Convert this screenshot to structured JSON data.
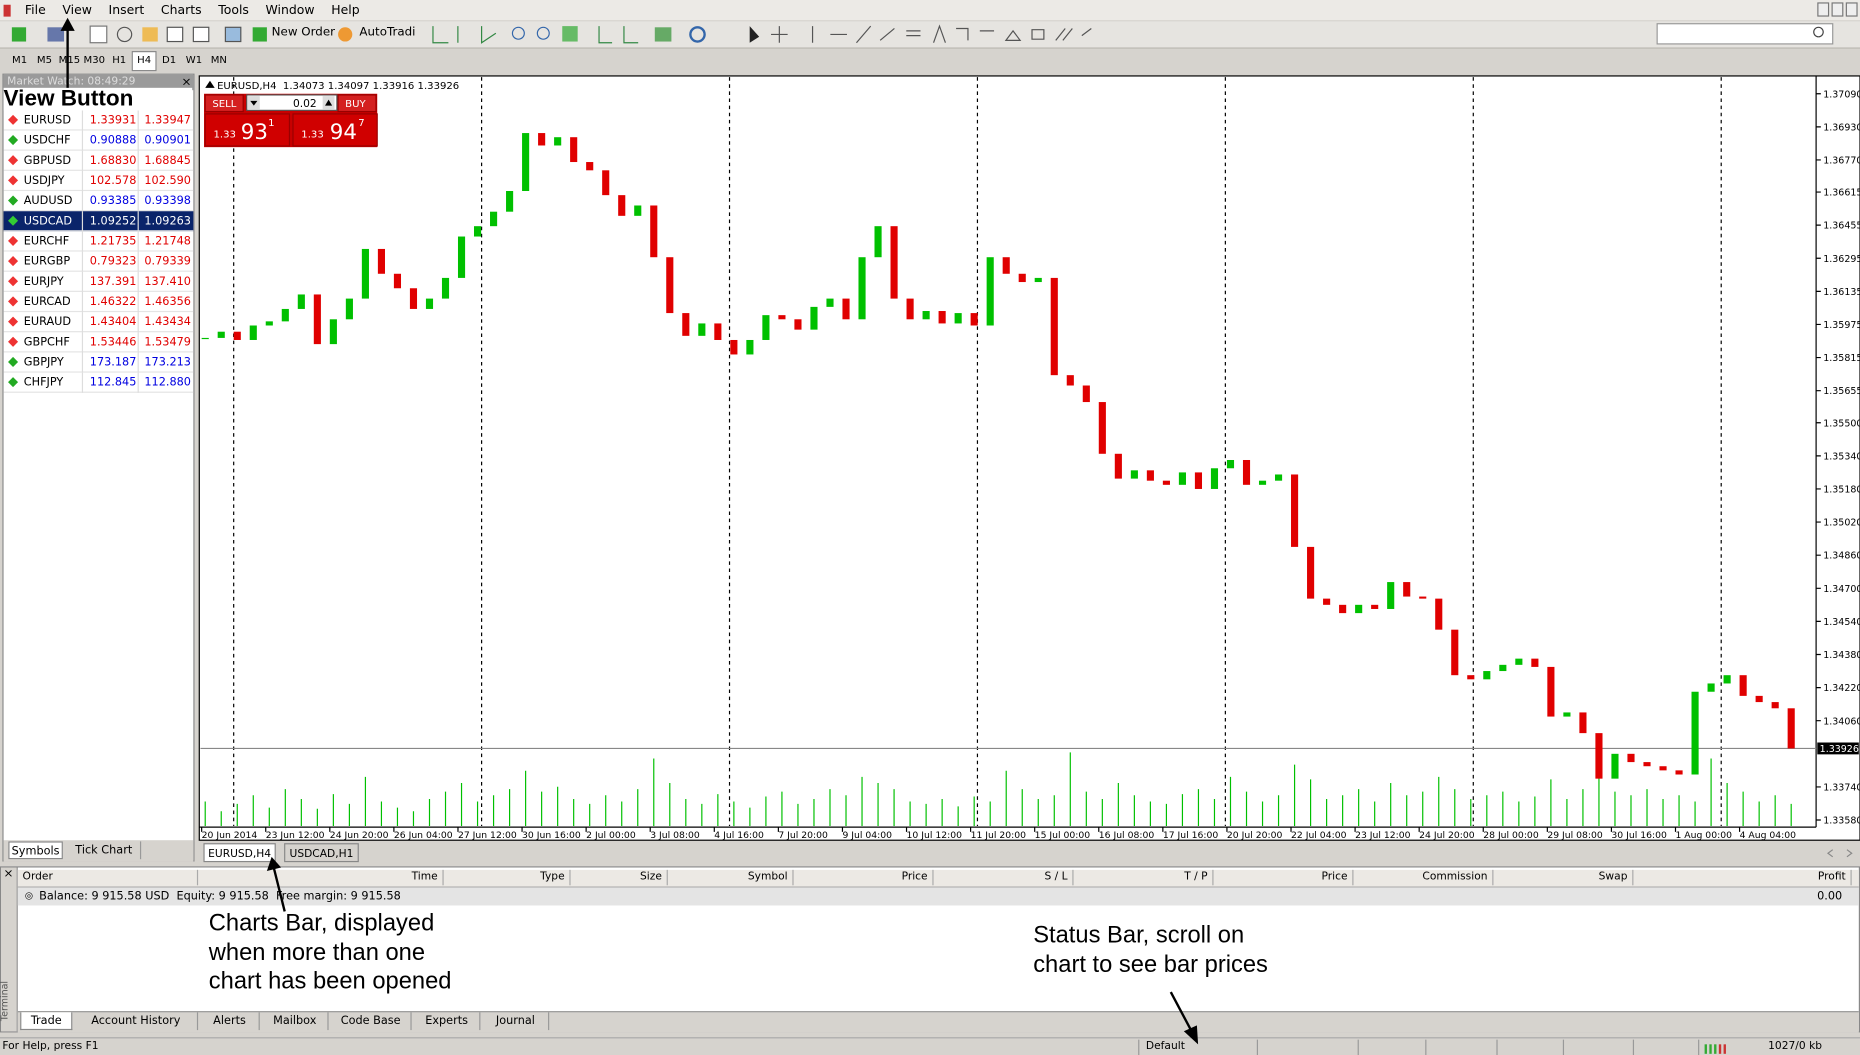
{
  "menu": [
    "File",
    "View",
    "Insert",
    "Charts",
    "Tools",
    "Window",
    "Help"
  ],
  "toolbar": {
    "new_order": "New Order",
    "autotrading": "AutoTradin"
  },
  "timeframes": [
    "M1",
    "M5",
    "M15",
    "M30",
    "H1",
    "H4",
    "D1",
    "W1",
    "MN"
  ],
  "market_watch": {
    "title": "Market Watch: 08:49:29",
    "rows": [
      {
        "symbol": "EURUSD",
        "bid": "1.33931",
        "ask": "1.33947",
        "color": "#e00000"
      },
      {
        "symbol": "USDCHF",
        "bid": "0.90888",
        "ask": "0.90901",
        "color": "#0000e0"
      },
      {
        "symbol": "GBPUSD",
        "bid": "1.68830",
        "ask": "1.68845",
        "color": "#e00000"
      },
      {
        "symbol": "USDJPY",
        "bid": "102.578",
        "ask": "102.590",
        "color": "#e00000"
      },
      {
        "symbol": "AUDUSD",
        "bid": "0.93385",
        "ask": "0.93398",
        "color": "#0000e0"
      },
      {
        "symbol": "USDCAD",
        "bid": "1.09252",
        "ask": "1.09263",
        "color": "#ffffff",
        "selected": true
      },
      {
        "symbol": "EURCHF",
        "bid": "1.21735",
        "ask": "1.21748",
        "color": "#e00000"
      },
      {
        "symbol": "EURGBP",
        "bid": "0.79323",
        "ask": "0.79339",
        "color": "#e00000"
      },
      {
        "symbol": "EURJPY",
        "bid": "137.391",
        "ask": "137.410",
        "color": "#e00000"
      },
      {
        "symbol": "EURCAD",
        "bid": "1.46322",
        "ask": "1.46356",
        "color": "#e00000"
      },
      {
        "symbol": "EURAUD",
        "bid": "1.43404",
        "ask": "1.43434",
        "color": "#e00000"
      },
      {
        "symbol": "GBPCHF",
        "bid": "1.53446",
        "ask": "1.53479",
        "color": "#e00000"
      },
      {
        "symbol": "GBPJPY",
        "bid": "173.187",
        "ask": "173.213",
        "color": "#0000e0"
      },
      {
        "symbol": "CHFJPY",
        "bid": "112.845",
        "ask": "112.880",
        "color": "#0000e0"
      }
    ],
    "tabs": [
      "Symbols",
      "Tick Chart"
    ]
  },
  "annotations": {
    "view_button": "View Button",
    "charts_bar": [
      "Charts Bar, displayed",
      "when more than one",
      "chart has been opened"
    ],
    "status_bar": [
      "Status Bar, scroll on",
      "chart to see bar prices"
    ]
  },
  "chart": {
    "type": "candlestick",
    "header": "EURUSD,H4  1.34073 1.34097 1.33916 1.33926",
    "trade_panel": {
      "sell": "SELL",
      "buy": "BUY",
      "lots": "0.02",
      "bid_prefix": "1.33",
      "bid_big": "93",
      "bid_small": "1",
      "ask_prefix": "1.33",
      "ask_big": "94",
      "ask_small": "7"
    },
    "ylim": [
      1.3358,
      1.3709
    ],
    "yticks": [
      {
        "value": 1.3709,
        "label": "1.37090"
      },
      {
        "value": 1.3693,
        "label": "1.36930"
      },
      {
        "value": 1.3677,
        "label": "1.36770"
      },
      {
        "value": 1.36615,
        "label": "1.36615"
      },
      {
        "value": 1.36455,
        "label": "1.36455"
      },
      {
        "value": 1.36295,
        "label": "1.36295"
      },
      {
        "value": 1.36135,
        "label": "1.36135"
      },
      {
        "value": 1.35975,
        "label": "1.35975"
      },
      {
        "value": 1.35815,
        "label": "1.35815"
      },
      {
        "value": 1.35655,
        "label": "1.35655"
      },
      {
        "value": 1.355,
        "label": "1.35500"
      },
      {
        "value": 1.3534,
        "label": "1.35340"
      },
      {
        "value": 1.3518,
        "label": "1.35180"
      },
      {
        "value": 1.3502,
        "label": "1.35020"
      },
      {
        "value": 1.3486,
        "label": "1.34860"
      },
      {
        "value": 1.347,
        "label": "1.34700"
      },
      {
        "value": 1.3454,
        "label": "1.34540"
      },
      {
        "value": 1.3438,
        "label": "1.34380"
      },
      {
        "value": 1.3422,
        "label": "1.34220"
      },
      {
        "value": 1.3406,
        "label": "1.34060"
      },
      {
        "value": 1.3374,
        "label": "1.33740"
      },
      {
        "value": 1.3358,
        "label": "1.33580"
      }
    ],
    "current_price": {
      "value": 1.33926,
      "label": "1.33926"
    },
    "time_labels": [
      "20 Jun 2014",
      "23 Jun 12:00",
      "24 Jun 20:00",
      "26 Jun 04:00",
      "27 Jun 12:00",
      "30 Jun 16:00",
      "2 Jul 00:00",
      "3 Jul 08:00",
      "4 Jul 16:00",
      "7 Jul 20:00",
      "9 Jul 04:00",
      "10 Jul 12:00",
      "11 Jul 20:00",
      "15 Jul 00:00",
      "16 Jul 08:00",
      "17 Jul 16:00",
      "20 Jul 20:00",
      "22 Jul 04:00",
      "23 Jul 12:00",
      "24 Jul 20:00",
      "28 Jul 00:00",
      "29 Jul 08:00",
      "30 Jul 16:00",
      "1 Aug 00:00",
      "4 Aug 04:00"
    ],
    "closes": [
      1.3591,
      1.3594,
      1.359,
      1.3597,
      1.3599,
      1.3605,
      1.3612,
      1.3588,
      1.36,
      1.361,
      1.3634,
      1.3622,
      1.3615,
      1.3605,
      1.361,
      1.362,
      1.364,
      1.3645,
      1.3652,
      1.3662,
      1.369,
      1.3684,
      1.3688,
      1.3676,
      1.3672,
      1.366,
      1.365,
      1.3655,
      1.363,
      1.3603,
      1.3592,
      1.3598,
      1.359,
      1.3583,
      1.359,
      1.3602,
      1.36,
      1.3595,
      1.3606,
      1.361,
      1.36,
      1.363,
      1.3645,
      1.361,
      1.36,
      1.3604,
      1.3598,
      1.3603,
      1.3597,
      1.363,
      1.3622,
      1.3618,
      1.362,
      1.3573,
      1.3568,
      1.356,
      1.3535,
      1.3523,
      1.3527,
      1.3522,
      1.352,
      1.3526,
      1.3518,
      1.3528,
      1.3532,
      1.352,
      1.3522,
      1.3525,
      1.349,
      1.3465,
      1.3462,
      1.3458,
      1.3462,
      1.346,
      1.3473,
      1.3466,
      1.3465,
      1.345,
      1.3428,
      1.3426,
      1.343,
      1.3433,
      1.3436,
      1.3432,
      1.3408,
      1.341,
      1.34,
      1.3378,
      1.339,
      1.3386,
      1.3384,
      1.3382,
      1.338,
      1.342,
      1.3424,
      1.3428,
      1.3418,
      1.3415,
      1.3412,
      1.33926
    ],
    "volumes": [
      20,
      12,
      18,
      25,
      15,
      30,
      22,
      14,
      26,
      18,
      40,
      20,
      15,
      12,
      22,
      28,
      35,
      20,
      25,
      30,
      45,
      28,
      32,
      22,
      18,
      25,
      20,
      30,
      55,
      35,
      22,
      18,
      26,
      20,
      15,
      24,
      28,
      18,
      22,
      30,
      25,
      40,
      35,
      30,
      20,
      18,
      22,
      16,
      24,
      20,
      45,
      30,
      22,
      25,
      60,
      28,
      22,
      35,
      25,
      20,
      18,
      26,
      30,
      22,
      40,
      28,
      20,
      25,
      50,
      38,
      22,
      25,
      30,
      20,
      35,
      25,
      28,
      40,
      30,
      22,
      25,
      28,
      20,
      24,
      38,
      22,
      30,
      45,
      28,
      25,
      30,
      22,
      25,
      20,
      55,
      35,
      28,
      20,
      25,
      18
    ],
    "up_color": "#00c000",
    "down_color": "#e00000"
  },
  "chart_tabs": [
    "EURUSD,H4",
    "USDCAD,H1"
  ],
  "terminal": {
    "side_label": "Terminal",
    "columns": [
      "Order",
      "Time",
      "Type",
      "Size",
      "Symbol",
      "Price",
      "S / L",
      "T / P",
      "Price",
      "Commission",
      "Swap",
      "Profit"
    ],
    "balance": "Balance: 9 915.58 USD  Equity: 9 915.58  Free margin: 9 915.58",
    "profit": "0.00",
    "tabs": [
      "Trade",
      "Account History",
      "Alerts",
      "Mailbox",
      "Code Base",
      "Experts",
      "Journal"
    ]
  },
  "status": {
    "help": "For Help, press F1",
    "profile": "Default",
    "traffic": "1027/0 kb"
  }
}
